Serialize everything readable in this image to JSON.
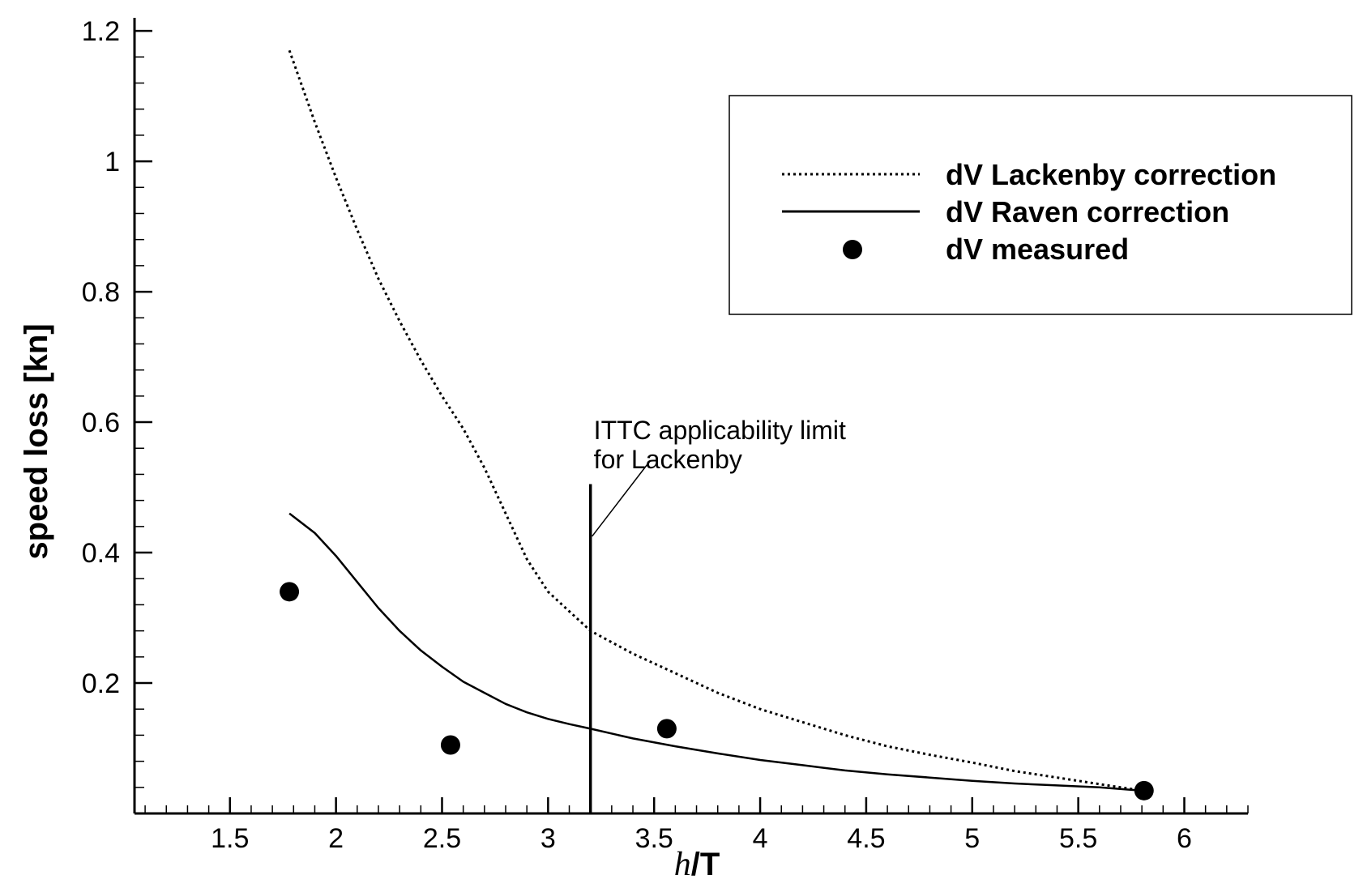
{
  "chart_data": {
    "type": "line",
    "xlabel": {
      "italic_part": "h",
      "bold_part": "/T"
    },
    "ylabel": "speed loss [kn]",
    "xlim": [
      1.05,
      6.3
    ],
    "ylim": [
      0.0,
      1.22
    ],
    "x_major_ticks": [
      1.5,
      2,
      2.5,
      3,
      3.5,
      4,
      4.5,
      5,
      5.5,
      6
    ],
    "x_tick_labels": [
      "1.5",
      "2",
      "2.5",
      "3",
      "3.5",
      "4",
      "4.5",
      "5",
      "5.5",
      "6"
    ],
    "y_major_ticks": [
      0.2,
      0.4,
      0.6,
      0.8,
      1.0,
      1.2
    ],
    "y_tick_labels": [
      "0.2",
      "0.4",
      "0.6",
      "0.8",
      "1",
      "1.2"
    ],
    "grid": false,
    "legend_position": "top-right",
    "series": [
      {
        "name": "dV Lackenby correction",
        "style": "dotted",
        "x": [
          1.78,
          1.9,
          2.0,
          2.1,
          2.2,
          2.3,
          2.4,
          2.5,
          2.6,
          2.7,
          2.8,
          2.9,
          3.0,
          3.1,
          3.2,
          3.4,
          3.6,
          3.8,
          4.0,
          4.2,
          4.4,
          4.6,
          4.8,
          5.0,
          5.2,
          5.4,
          5.6,
          5.8
        ],
        "y": [
          1.17,
          1.06,
          0.975,
          0.895,
          0.82,
          0.755,
          0.695,
          0.64,
          0.59,
          0.53,
          0.46,
          0.39,
          0.34,
          0.31,
          0.28,
          0.245,
          0.215,
          0.185,
          0.16,
          0.14,
          0.12,
          0.103,
          0.09,
          0.078,
          0.065,
          0.055,
          0.045,
          0.035
        ]
      },
      {
        "name": "dV Raven correction",
        "style": "solid",
        "x": [
          1.78,
          1.9,
          2.0,
          2.1,
          2.2,
          2.3,
          2.4,
          2.5,
          2.6,
          2.7,
          2.8,
          2.9,
          3.0,
          3.1,
          3.2,
          3.4,
          3.6,
          3.8,
          4.0,
          4.2,
          4.4,
          4.6,
          4.8,
          5.0,
          5.2,
          5.4,
          5.6,
          5.8
        ],
        "y": [
          0.46,
          0.43,
          0.395,
          0.355,
          0.315,
          0.28,
          0.25,
          0.225,
          0.202,
          0.185,
          0.168,
          0.155,
          0.145,
          0.137,
          0.13,
          0.115,
          0.103,
          0.092,
          0.082,
          0.074,
          0.066,
          0.06,
          0.055,
          0.05,
          0.046,
          0.043,
          0.04,
          0.035
        ]
      },
      {
        "name": "dV measured",
        "style": "marker",
        "x": [
          1.78,
          2.54,
          3.56,
          5.81
        ],
        "y": [
          0.34,
          0.105,
          0.13,
          0.035
        ]
      }
    ],
    "annotations": [
      {
        "text_lines": [
          "ITTC applicability limit",
          "for Lackenby"
        ],
        "vertical_line_x": 3.2,
        "vertical_line_y_range": [
          0.0,
          0.505
        ]
      }
    ]
  }
}
